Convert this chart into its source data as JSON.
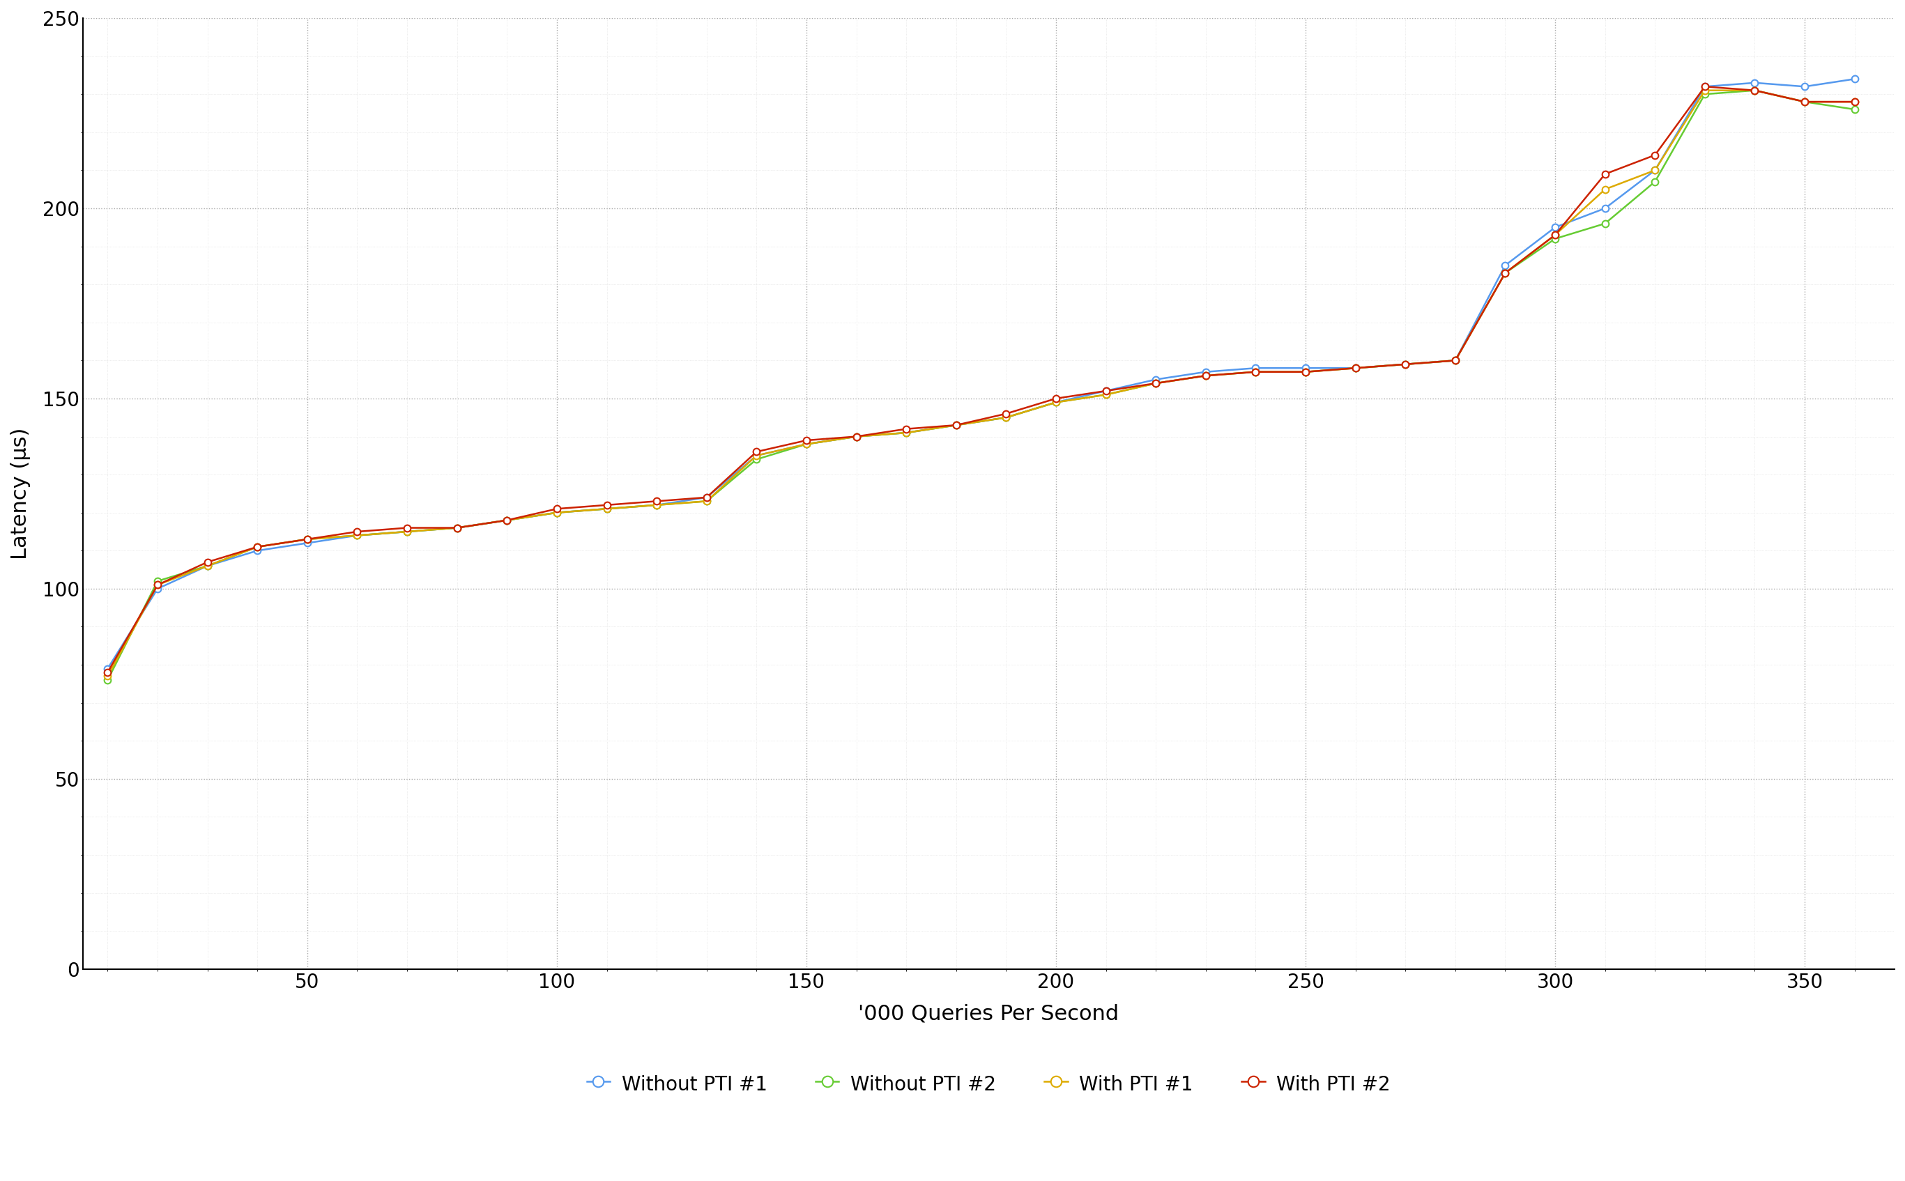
{
  "title": "",
  "xlabel": "'000 Queries Per Second",
  "ylabel": "Latency (µs)",
  "xlim": [
    5,
    368
  ],
  "ylim": [
    0,
    250
  ],
  "xticks": [
    50,
    100,
    150,
    200,
    250,
    300,
    350
  ],
  "yticks": [
    0,
    50,
    100,
    150,
    200,
    250
  ],
  "background_color": "#ffffff",
  "plot_bg_color": "#ffffff",
  "grid_major_color": "#aaaaaa",
  "grid_minor_color": "#dddddd",
  "series": [
    {
      "label": "Without PTI #1",
      "color": "#5599ee",
      "marker": "o",
      "marker_facecolor": "white",
      "marker_edgecolor": "#5599ee",
      "x": [
        10,
        20,
        30,
        40,
        50,
        60,
        70,
        80,
        90,
        100,
        110,
        120,
        130,
        140,
        150,
        160,
        170,
        180,
        190,
        200,
        210,
        220,
        230,
        240,
        250,
        260,
        270,
        280,
        290,
        300,
        310,
        320,
        330,
        340,
        350,
        360
      ],
      "y": [
        79,
        100,
        106,
        110,
        112,
        114,
        115,
        116,
        118,
        120,
        121,
        122,
        124,
        135,
        138,
        140,
        141,
        143,
        145,
        149,
        152,
        155,
        157,
        158,
        158,
        158,
        159,
        160,
        185,
        195,
        200,
        210,
        232,
        233,
        232,
        234
      ]
    },
    {
      "label": "Without PTI #2",
      "color": "#66cc33",
      "marker": "o",
      "marker_facecolor": "white",
      "marker_edgecolor": "#66cc33",
      "x": [
        10,
        20,
        30,
        40,
        50,
        60,
        70,
        80,
        90,
        100,
        110,
        120,
        130,
        140,
        150,
        160,
        170,
        180,
        190,
        200,
        210,
        220,
        230,
        240,
        250,
        260,
        270,
        280,
        290,
        300,
        310,
        320,
        330,
        340,
        350,
        360
      ],
      "y": [
        76,
        102,
        106,
        111,
        113,
        114,
        115,
        116,
        118,
        120,
        121,
        122,
        123,
        134,
        138,
        140,
        141,
        143,
        145,
        149,
        151,
        154,
        156,
        157,
        157,
        158,
        159,
        160,
        183,
        192,
        196,
        207,
        230,
        231,
        228,
        226
      ]
    },
    {
      "label": "With PTI #1",
      "color": "#ddaa00",
      "marker": "o",
      "marker_facecolor": "white",
      "marker_edgecolor": "#ddaa00",
      "x": [
        10,
        20,
        30,
        40,
        50,
        60,
        70,
        80,
        90,
        100,
        110,
        120,
        130,
        140,
        150,
        160,
        170,
        180,
        190,
        200,
        210,
        220,
        230,
        240,
        250,
        260,
        270,
        280,
        290,
        300,
        310,
        320,
        330,
        340,
        350,
        360
      ],
      "y": [
        77,
        101,
        106,
        111,
        113,
        114,
        115,
        116,
        118,
        120,
        121,
        122,
        123,
        135,
        138,
        140,
        141,
        143,
        145,
        149,
        151,
        154,
        156,
        157,
        157,
        158,
        159,
        160,
        183,
        193,
        205,
        210,
        231,
        231,
        228,
        228
      ]
    },
    {
      "label": "With PTI #2",
      "color": "#cc2200",
      "marker": "o",
      "marker_facecolor": "white",
      "marker_edgecolor": "#cc2200",
      "x": [
        10,
        20,
        30,
        40,
        50,
        60,
        70,
        80,
        90,
        100,
        110,
        120,
        130,
        140,
        150,
        160,
        170,
        180,
        190,
        200,
        210,
        220,
        230,
        240,
        250,
        260,
        270,
        280,
        290,
        300,
        310,
        320,
        330,
        340,
        350,
        360
      ],
      "y": [
        78,
        101,
        107,
        111,
        113,
        115,
        116,
        116,
        118,
        121,
        122,
        123,
        124,
        136,
        139,
        140,
        142,
        143,
        146,
        150,
        152,
        154,
        156,
        157,
        157,
        158,
        159,
        160,
        183,
        193,
        209,
        214,
        232,
        231,
        228,
        228
      ]
    }
  ],
  "legend_ncol": 4,
  "linewidth": 1.8,
  "markersize": 7,
  "tick_fontsize": 20,
  "label_fontsize": 22,
  "legend_fontsize": 20
}
